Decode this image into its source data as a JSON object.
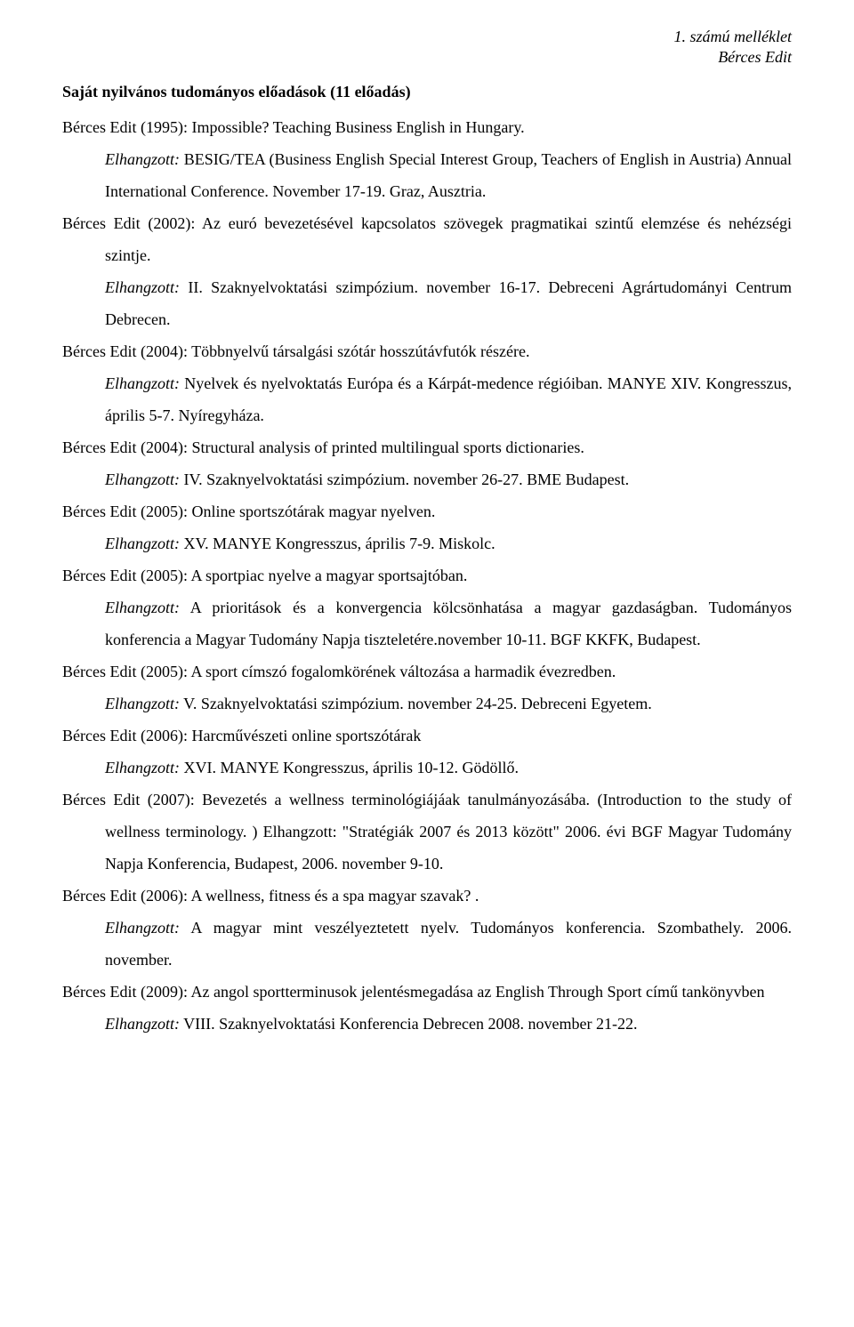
{
  "header": {
    "line1": "1. számú melléklet",
    "line2": "Bérces Edit"
  },
  "heading": "Saját nyilvános tudományos előadások (11 előadás)",
  "entries": [
    {
      "title": "Bérces Edit (1995): Impossible? Teaching Business English in Hungary.",
      "detail_prefix": "Elhangzott:",
      "detail": " BESIG/TEA (Business English Special Interest Group, Teachers of English in Austria) Annual International Conference. November 17-19. Graz, Ausztria."
    },
    {
      "title": "Bérces Edit (2002): Az euró bevezetésével kapcsolatos szövegek pragmatikai szintű elemzése és nehézségi szintje.",
      "detail_prefix": "Elhangzott:",
      "detail": " II. Szaknyelvoktatási szimpózium. november 16-17. Debreceni Agrártudományi Centrum Debrecen."
    },
    {
      "title": "Bérces Edit (2004): Többnyelvű társalgási szótár hosszútávfutók részére.",
      "detail_prefix": "Elhangzott:",
      "detail": " Nyelvek és nyelvoktatás Európa és a Kárpát-medence régióiban. MANYE XIV. Kongresszus, április 5-7. Nyíregyháza."
    },
    {
      "title": "Bérces Edit (2004): Structural analysis of printed multilingual sports dictionaries.",
      "detail_prefix": "Elhangzott:",
      "detail": " IV. Szaknyelvoktatási szimpózium. november 26-27. BME Budapest."
    },
    {
      "title": "Bérces Edit (2005): Online sportszótárak magyar nyelven.",
      "detail_prefix": "Elhangzott:",
      "detail": " XV. MANYE Kongresszus, április 7-9. Miskolc."
    },
    {
      "title": "Bérces Edit (2005): A sportpiac nyelve a magyar sportsajtóban.",
      "detail_prefix": "Elhangzott:",
      "detail": " A prioritások és a konvergencia kölcsönhatása a magyar gazdaságban. Tudományos konferencia a Magyar Tudomány Napja tiszteletére.november 10-11. BGF KKFK, Budapest."
    },
    {
      "title": "Bérces Edit (2005): A sport címszó fogalomkörének változása a harmadik évezredben.",
      "detail_prefix": "Elhangzott:",
      "detail": " V. Szaknyelvoktatási szimpózium. november 24-25. Debreceni Egyetem."
    },
    {
      "title": "Bérces Edit (2006): Harcművészeti online sportszótárak",
      "detail_prefix": "Elhangzott:",
      "detail": " XVI. MANYE Kongresszus, április 10-12. Gödöllő."
    },
    {
      "title": "Bérces Edit (2007): Bevezetés a wellness terminológiájáak tanulmányozásába. (Introduction to the study of wellness terminology. ) Elhangzott: \"Stratégiák 2007 és 2013 között\" 2006. évi BGF Magyar Tudomány Napja Konferencia, Budapest, 2006. november 9-10.",
      "detail_prefix": "",
      "detail": ""
    },
    {
      "title": "Bérces Edit (2006): A wellness, fitness és a spa magyar szavak? .",
      "detail_prefix": "Elhangzott:",
      "detail": " A magyar mint veszélyeztetett nyelv. Tudományos konferencia. Szombathely. 2006. november."
    },
    {
      "title": "Bérces Edit (2009): Az angol sportterminusok jelentésmegadása az English Through Sport című tankönyvben",
      "detail_prefix": "Elhangzott:",
      "detail": " VIII. Szaknyelvoktatási Konferencia Debrecen 2008. november 21-22."
    }
  ]
}
